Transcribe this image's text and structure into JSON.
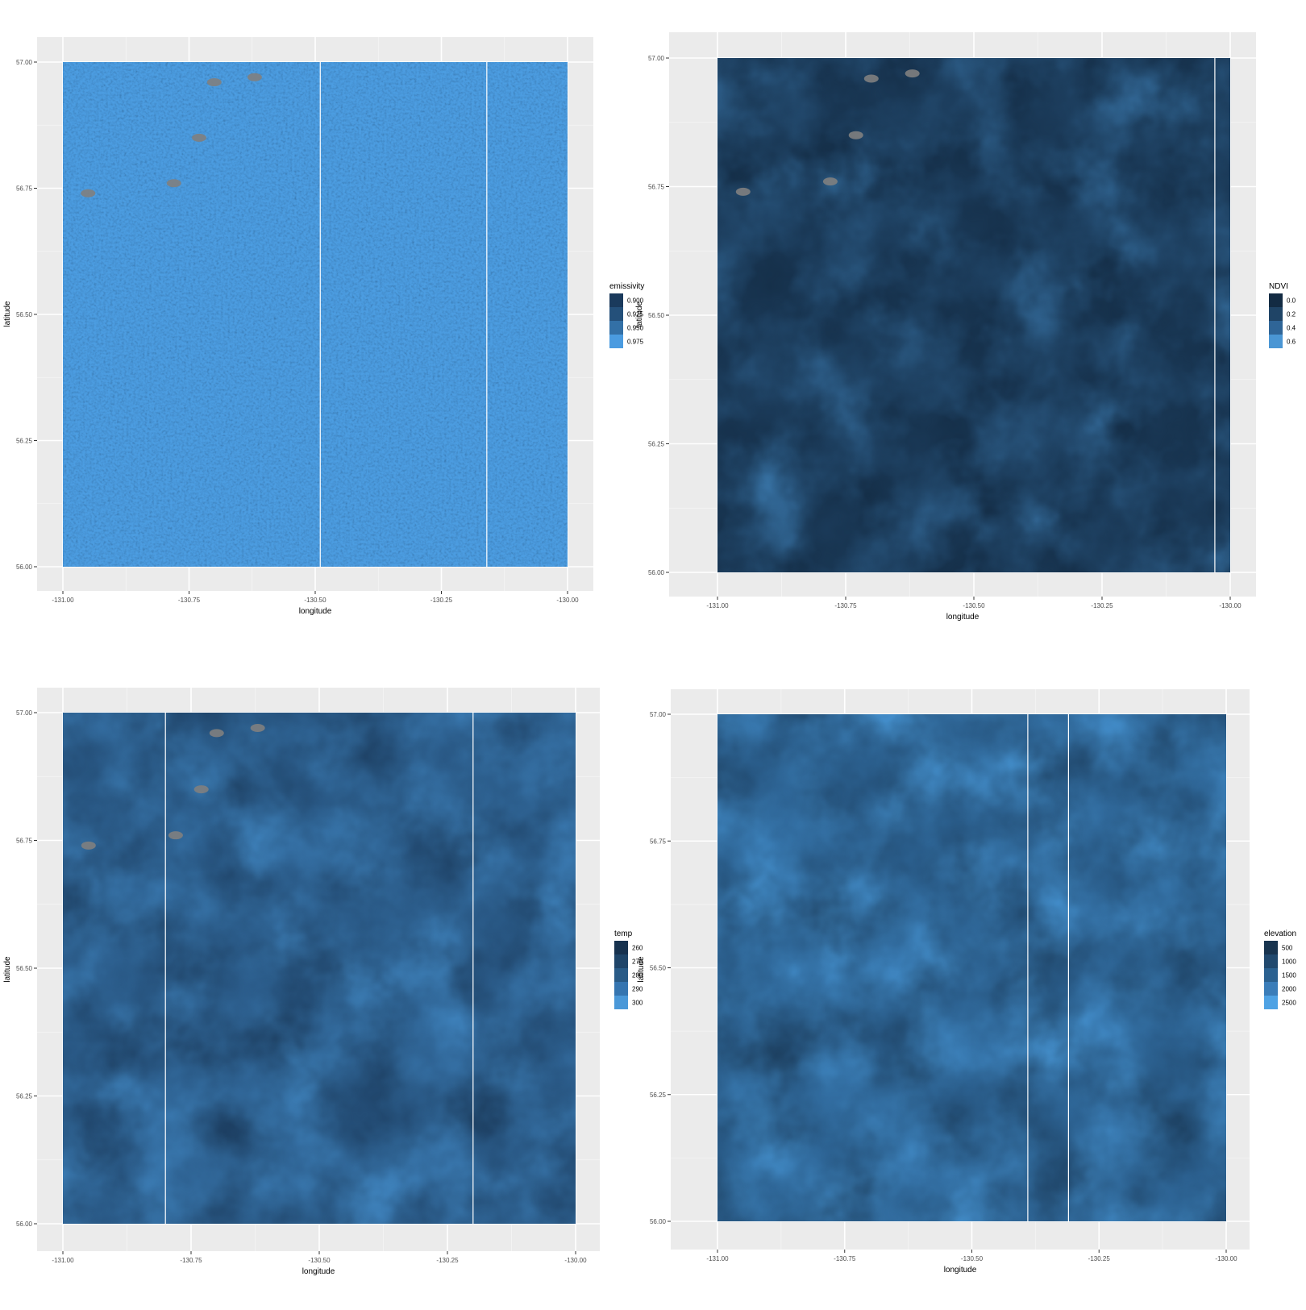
{
  "chart_data": [
    {
      "type": "heatmap",
      "xlabel": "longitude",
      "ylabel": "latitude",
      "xlim": [
        -131.0,
        -130.0
      ],
      "ylim": [
        56.0,
        57.0
      ],
      "x_ticks": [
        "-131.00",
        "-130.75",
        "-130.50",
        "-130.25",
        "-130.00"
      ],
      "y_ticks": [
        "56.00",
        "56.25",
        "56.50",
        "56.75",
        "57.00"
      ],
      "x_tick_values": [
        -131.0,
        -130.75,
        -130.5,
        -130.25,
        -130.0
      ],
      "y_tick_values": [
        56.0,
        56.25,
        56.5,
        56.75,
        57.0
      ],
      "legend": {
        "title": "emissivity",
        "labels": [
          "0.900",
          "0.925",
          "0.950",
          "0.975"
        ],
        "colors": [
          "#1a3a5c",
          "#24507a",
          "#3370a6",
          "#4a9be0"
        ]
      },
      "grid": true,
      "panel_background": "#ebebeb",
      "stripes_at_longitude": [
        -130.49,
        -130.16
      ],
      "dominant_color": "#4d9ee2",
      "missing_color": "#808080"
    },
    {
      "type": "heatmap",
      "xlabel": "longitude",
      "ylabel": "latitude",
      "xlim": [
        -131.0,
        -130.0
      ],
      "ylim": [
        56.0,
        57.0
      ],
      "x_ticks": [
        "-131.00",
        "-130.75",
        "-130.50",
        "-130.25",
        "-130.00"
      ],
      "y_ticks": [
        "56.00",
        "56.25",
        "56.50",
        "56.75",
        "57.00"
      ],
      "x_tick_values": [
        -131.0,
        -130.75,
        -130.5,
        -130.25,
        -130.0
      ],
      "y_tick_values": [
        56.0,
        56.25,
        56.5,
        56.75,
        57.0
      ],
      "legend": {
        "title": "NDVI",
        "labels": [
          "0.0",
          "0.2",
          "0.4",
          "0.6"
        ],
        "colors": [
          "#132b43",
          "#1f4466",
          "#2f6597",
          "#4a96d4"
        ]
      },
      "grid": true,
      "panel_background": "#ebebeb",
      "stripes_at_longitude": [
        -130.03
      ],
      "dominant_color": "#1d3e5e",
      "missing_color": "#808080"
    },
    {
      "type": "heatmap",
      "xlabel": "longitude",
      "ylabel": "latitude",
      "xlim": [
        -131.0,
        -130.0
      ],
      "ylim": [
        56.0,
        57.0
      ],
      "x_ticks": [
        "-131.00",
        "-130.75",
        "-130.50",
        "-130.25",
        "-130.00"
      ],
      "y_ticks": [
        "56.00",
        "56.25",
        "56.50",
        "56.75",
        "57.00"
      ],
      "x_tick_values": [
        -131.0,
        -130.75,
        -130.5,
        -130.25,
        -130.0
      ],
      "y_tick_values": [
        56.0,
        56.25,
        56.5,
        56.75,
        57.0
      ],
      "legend": {
        "title": "temp",
        "labels": [
          "260",
          "270",
          "280",
          "290",
          "300"
        ],
        "colors": [
          "#17324f",
          "#1f4569",
          "#295b87",
          "#3575b0",
          "#4a98d8"
        ]
      },
      "grid": true,
      "panel_background": "#ebebeb",
      "stripes_at_longitude": [
        -130.8,
        -130.2
      ],
      "dominant_color": "#2a5a88",
      "missing_color": "#808080"
    },
    {
      "type": "heatmap",
      "xlabel": "longitude",
      "ylabel": "latitude",
      "xlim": [
        -131.0,
        -130.0
      ],
      "ylim": [
        56.0,
        57.0
      ],
      "x_ticks": [
        "-131.00",
        "-130.75",
        "-130.50",
        "-130.25",
        "-130.00"
      ],
      "y_ticks": [
        "56.00",
        "56.25",
        "56.50",
        "56.75",
        "57.00"
      ],
      "x_tick_values": [
        -131.0,
        -130.75,
        -130.5,
        -130.25,
        -130.0
      ],
      "y_tick_values": [
        56.0,
        56.25,
        56.5,
        56.75,
        57.0
      ],
      "legend": {
        "title": "elevation",
        "labels": [
          "500",
          "1000",
          "1500",
          "2000",
          "2500"
        ],
        "colors": [
          "#18344f",
          "#21496e",
          "#2b6190",
          "#3a7db9",
          "#4ea2e4"
        ]
      },
      "grid": true,
      "panel_background": "#ebebeb",
      "stripes_at_longitude": [
        -130.39,
        -130.31
      ],
      "dominant_color": "#2e6698",
      "missing_color": "#808080"
    }
  ]
}
